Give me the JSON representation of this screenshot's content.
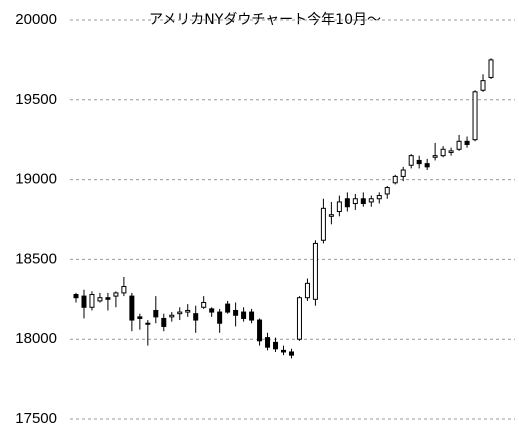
{
  "chart_data": {
    "type": "candlestick",
    "title": "アメリカNYダウチャート今年10月～",
    "series": [
      {
        "open": [
          18280,
          18270,
          18200,
          18240,
          18260,
          18270,
          18290,
          18270,
          18140,
          18100,
          18180,
          18130,
          18140,
          18160,
          18170,
          18160,
          18200,
          18190,
          18170,
          18220,
          18180,
          18170,
          18170,
          18120,
          18010,
          17980,
          17930,
          17920,
          18000,
          18260,
          18250,
          18620,
          18770,
          18800,
          18880,
          18850,
          18880,
          18860,
          18880,
          18910,
          18980,
          19020,
          19090,
          19120,
          19100,
          19140,
          19150,
          19170,
          19190,
          19240,
          19250,
          19560,
          19640
        ],
        "high": [
          18290,
          18310,
          18300,
          18290,
          18290,
          18300,
          18390,
          18290,
          18160,
          18120,
          18270,
          18160,
          18170,
          18200,
          18220,
          18210,
          18270,
          18200,
          18190,
          18240,
          18230,
          18200,
          18190,
          18130,
          18040,
          18010,
          17960,
          17940,
          18270,
          18380,
          18620,
          18880,
          18860,
          18900,
          18920,
          18910,
          18920,
          18900,
          18920,
          18960,
          19030,
          19080,
          19160,
          19150,
          19130,
          19230,
          19210,
          19200,
          19280,
          19270,
          19560,
          19660,
          19760
        ],
        "low": [
          18230,
          18130,
          18180,
          18230,
          18180,
          18200,
          18270,
          18050,
          18060,
          17960,
          18100,
          18050,
          18110,
          18120,
          18140,
          18040,
          18190,
          18140,
          18040,
          18160,
          18080,
          18110,
          18100,
          17960,
          17930,
          17920,
          17900,
          17880,
          17990,
          18240,
          18210,
          18600,
          18720,
          18770,
          18800,
          18810,
          18830,
          18830,
          18850,
          18880,
          18970,
          18990,
          19070,
          19070,
          19060,
          19120,
          19140,
          19150,
          19180,
          19200,
          19240,
          19550,
          19630
        ],
        "close": [
          18260,
          18200,
          18280,
          18260,
          18250,
          18290,
          18330,
          18120,
          18130,
          18100,
          18140,
          18080,
          18150,
          18170,
          18180,
          18120,
          18230,
          18170,
          18100,
          18170,
          18150,
          18130,
          18120,
          17990,
          17950,
          17940,
          17920,
          17900,
          18260,
          18350,
          18600,
          18820,
          18780,
          18860,
          18830,
          18880,
          18850,
          18880,
          18900,
          18950,
          19020,
          19060,
          19150,
          19100,
          19080,
          19150,
          19190,
          19180,
          19240,
          19220,
          19550,
          19620,
          19750
        ]
      }
    ],
    "up_color": "#ffffff",
    "down_color": "#000000",
    "ylim": [
      17500,
      20000
    ],
    "yticks": [
      17500,
      18000,
      18500,
      19000,
      19500,
      20000
    ],
    "grid": true
  }
}
